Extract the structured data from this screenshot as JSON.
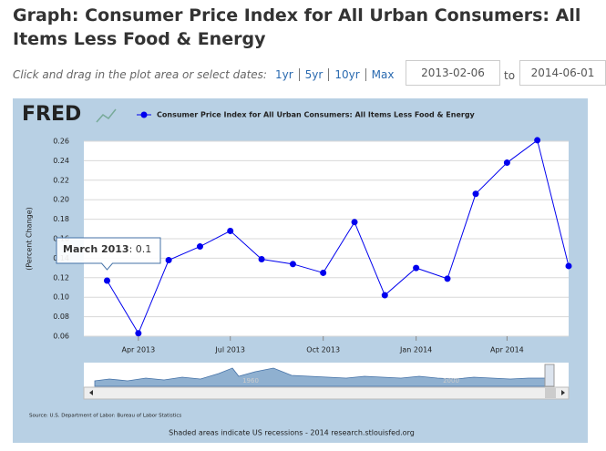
{
  "header": {
    "title": "Graph: Consumer Price Index for All Urban Consumers: All Items Less Food & Energy"
  },
  "controls": {
    "instruction": "Click and drag in the plot area or select dates:",
    "ranges": [
      "1yr",
      "5yr",
      "10yr",
      "Max"
    ],
    "to": "to"
  },
  "chart_data": {
    "type": "line",
    "logo": "FRED",
    "y_label": "(Percent Change)",
    "x": [
      "2013-03",
      "2013-04",
      "2013-05",
      "2013-06",
      "2013-07",
      "2013-08",
      "2013-09",
      "2013-10",
      "2013-11",
      "2013-12",
      "2014-01",
      "2014-02",
      "2014-03",
      "2014-04",
      "2014-05",
      "2014-06"
    ],
    "series": [
      {
        "name": "Consumer Price Index for All Urban Consumers: All Items Less Food & Energy",
        "color": "#0000ee",
        "values": [
          0.117,
          0.063,
          0.138,
          0.152,
          0.168,
          0.139,
          0.134,
          0.125,
          0.177,
          0.102,
          0.13,
          0.119,
          0.206,
          0.238,
          0.261,
          0.132
        ]
      }
    ],
    "xlim": [
      "2013-02-06",
      "2014-06-01"
    ],
    "xticks": [
      {
        "value": "2013-04",
        "label": "Apr 2013"
      },
      {
        "value": "2013-07",
        "label": "Jul 2013"
      },
      {
        "value": "2013-10",
        "label": "Oct 2013"
      },
      {
        "value": "2014-01",
        "label": "Jan 2014"
      },
      {
        "value": "2014-04",
        "label": "Apr 2014"
      }
    ],
    "ylim": [
      0.06,
      0.26
    ],
    "yticks": [
      0.06,
      0.08,
      {
        "value": 0.1,
        "label": "0.10"
      },
      0.12,
      0.14,
      0.16,
      0.18,
      {
        "value": 0.2,
        "label": "0.20"
      },
      0.22,
      0.24,
      0.26
    ],
    "grid": true,
    "annotations": [
      {
        "label": "March 2013",
        "text": ": 0.1"
      }
    ],
    "navigator_labels": [
      "1960",
      "2000"
    ],
    "source": "Source: U.S. Department of Labor: Bureau of Labor Statistics",
    "footer": "Shaded areas indicate US recessions - 2014 research.stlouisfed.org"
  }
}
